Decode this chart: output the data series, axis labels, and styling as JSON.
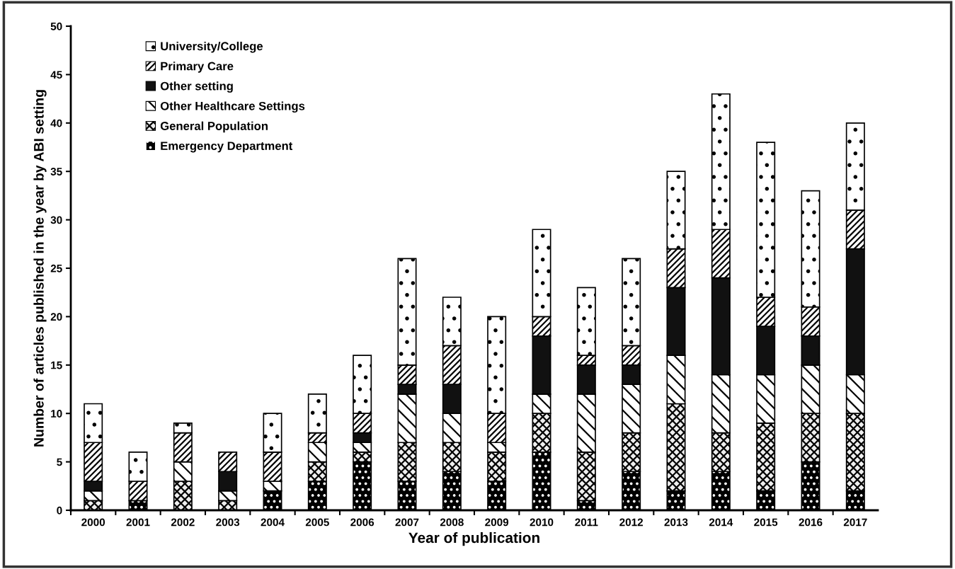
{
  "chart_data": {
    "type": "bar",
    "stacked": true,
    "xlabel": "Year of publication",
    "ylabel": "Number of articles published in the year by ABI setting",
    "categories": [
      "2000",
      "2001",
      "2002",
      "2003",
      "2004",
      "2005",
      "2006",
      "2007",
      "2008",
      "2009",
      "2010",
      "2011",
      "2012",
      "2013",
      "2014",
      "2015",
      "2016",
      "2017"
    ],
    "series": [
      {
        "name": "Emergency Department",
        "color": "#000000",
        "values": [
          0,
          1,
          0,
          0,
          2,
          3,
          5,
          3,
          4,
          3,
          6,
          1,
          4,
          2,
          4,
          2,
          5,
          2
        ]
      },
      {
        "name": "General Population",
        "color": "#eeeeee",
        "values": [
          1,
          0,
          3,
          1,
          0,
          2,
          1,
          4,
          3,
          3,
          4,
          5,
          4,
          9,
          4,
          7,
          5,
          8
        ]
      },
      {
        "name": "Other Healthcare Settings",
        "color": "#ffffff",
        "values": [
          1,
          0,
          2,
          1,
          1,
          2,
          1,
          5,
          3,
          1,
          2,
          6,
          5,
          5,
          6,
          5,
          5,
          4
        ]
      },
      {
        "name": "Other setting",
        "color": "#111111",
        "values": [
          1,
          0,
          0,
          2,
          0,
          0,
          1,
          1,
          3,
          0,
          6,
          3,
          2,
          7,
          10,
          5,
          3,
          13
        ]
      },
      {
        "name": "Primary Care",
        "color": "#ffffff",
        "values": [
          4,
          2,
          3,
          2,
          3,
          1,
          2,
          2,
          4,
          3,
          2,
          1,
          2,
          4,
          5,
          3,
          3,
          4
        ]
      },
      {
        "name": "University/College",
        "color": "#ffffff",
        "values": [
          4,
          3,
          1,
          0,
          4,
          4,
          6,
          11,
          5,
          10,
          9,
          7,
          9,
          8,
          14,
          16,
          12,
          9
        ]
      }
    ],
    "ylim": [
      0,
      50
    ],
    "yticks": [
      0,
      5,
      10,
      15,
      20,
      25,
      30,
      35,
      40,
      45,
      50
    ],
    "legend": "top left",
    "grid": false
  }
}
